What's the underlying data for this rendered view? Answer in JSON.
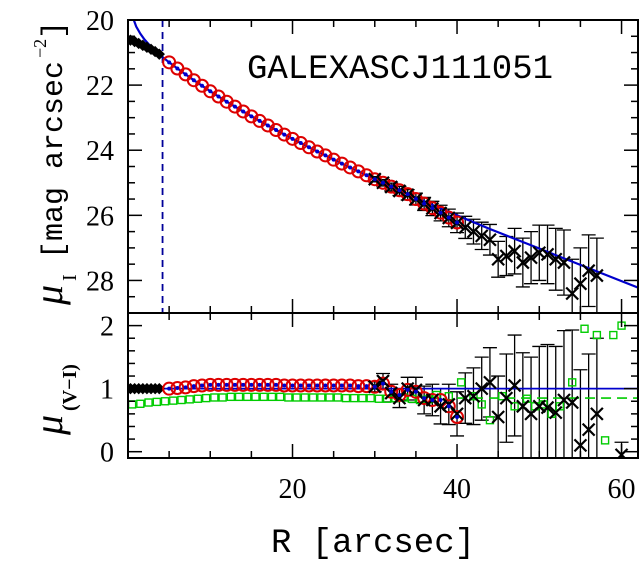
{
  "chart_data": [
    {
      "type": "scatter",
      "panel": "top",
      "title": "GALEXASCJ111051",
      "ylabel_main": "μ",
      "ylabel_sub": "I",
      "ylabel_units": "[mag arcsec",
      "ylabel_exp": "−2",
      "ylabel_close": "]",
      "xlim": [
        0,
        62
      ],
      "ylim": [
        29.0,
        20.0
      ],
      "y_inverted": true,
      "yticks": [
        20,
        22,
        24,
        26,
        28
      ],
      "ytick_labels": [
        "20",
        "22",
        "24",
        "26",
        "28"
      ],
      "vline_x": 4.2,
      "colors": {
        "model": "#0000cc",
        "red": "#dd0000",
        "black": "#000000",
        "green": "#00cc00",
        "vline": "#000099"
      },
      "series": [
        {
          "marker": "diamond",
          "color": "#000000",
          "points": [
            [
              0.3,
              20.62
            ],
            [
              0.8,
              20.66
            ],
            [
              1.3,
              20.72
            ],
            [
              1.8,
              20.78
            ],
            [
              2.3,
              20.84
            ],
            [
              2.8,
              20.9
            ],
            [
              3.3,
              20.97
            ],
            [
              3.8,
              21.05
            ]
          ]
        },
        {
          "marker": "circle",
          "color": "#dd0000",
          "points": [
            [
              5,
              21.3
            ],
            [
              6,
              21.49
            ],
            [
              7,
              21.67
            ],
            [
              8,
              21.85
            ],
            [
              9,
              22.02
            ],
            [
              10,
              22.19
            ],
            [
              11,
              22.35
            ],
            [
              12,
              22.51
            ],
            [
              13,
              22.66
            ],
            [
              14,
              22.81
            ],
            [
              15,
              22.96
            ],
            [
              16,
              23.1
            ],
            [
              17,
              23.24
            ],
            [
              18,
              23.38
            ],
            [
              19,
              23.52
            ],
            [
              20,
              23.65
            ],
            [
              21,
              23.78
            ],
            [
              22,
              23.91
            ],
            [
              23,
              24.04
            ],
            [
              24,
              24.16
            ],
            [
              25,
              24.29
            ],
            [
              26,
              24.41
            ],
            [
              27,
              24.53
            ],
            [
              28,
              24.65
            ],
            [
              29,
              24.77
            ],
            [
              30,
              24.89
            ],
            [
              31,
              25.0
            ],
            [
              32,
              25.12
            ],
            [
              33,
              25.23
            ],
            [
              34,
              25.35
            ],
            [
              35,
              25.5
            ],
            [
              36,
              25.64
            ],
            [
              37,
              25.78
            ],
            [
              38,
              25.92
            ],
            [
              39,
              26.07
            ],
            [
              40,
              26.22
            ]
          ]
        },
        {
          "marker": "cross",
          "color": "#000000",
          "points": [
            [
              30,
              24.89
            ],
            [
              31,
              25.0
            ],
            [
              32,
              25.13
            ],
            [
              33,
              25.25
            ],
            [
              34,
              25.37
            ],
            [
              35,
              25.5
            ],
            [
              36,
              25.65
            ],
            [
              37,
              25.79
            ],
            [
              38,
              25.93
            ],
            [
              39,
              26.08
            ],
            [
              40,
              26.23
            ],
            [
              41,
              26.37
            ],
            [
              42,
              26.5
            ],
            [
              43,
              26.63
            ],
            [
              44,
              26.75
            ],
            [
              45,
              27.35
            ],
            [
              46,
              27.25
            ],
            [
              47,
              27.1
            ],
            [
              48,
              27.45
            ],
            [
              49,
              27.3
            ],
            [
              50,
              27.15
            ],
            [
              51,
              27.2
            ],
            [
              52,
              27.35
            ],
            [
              53,
              27.45
            ],
            [
              54,
              28.4
            ],
            [
              55,
              28.1
            ],
            [
              56,
              27.7
            ],
            [
              57,
              27.85
            ]
          ]
        }
      ],
      "errorbars": {
        "x": [
          30,
          31,
          32,
          33,
          34,
          35,
          36,
          37,
          38,
          39,
          40,
          41,
          42,
          43,
          44,
          45,
          46,
          47,
          48,
          49,
          50,
          51,
          52,
          53,
          54,
          55,
          56,
          57
        ],
        "err": [
          0.08,
          0.1,
          0.12,
          0.14,
          0.16,
          0.18,
          0.2,
          0.22,
          0.24,
          0.27,
          0.3,
          0.34,
          0.38,
          0.42,
          0.47,
          0.55,
          0.6,
          0.7,
          0.75,
          0.8,
          0.85,
          0.9,
          0.95,
          1.0,
          1.05,
          1.1,
          1.1,
          1.15
        ]
      },
      "model": {
        "color": "#0000cc",
        "x": [
          0.7,
          1,
          1.5,
          2,
          3,
          4,
          5,
          6,
          7,
          8,
          10,
          12,
          14,
          16,
          18,
          20,
          22,
          24,
          26,
          28,
          30,
          32,
          34,
          36,
          38,
          40,
          42,
          44,
          46,
          48,
          50,
          52,
          54,
          56,
          58,
          60,
          62
        ],
        "y": [
          20.0,
          20.2,
          20.42,
          20.6,
          20.88,
          21.1,
          21.3,
          21.49,
          21.67,
          21.85,
          22.19,
          22.51,
          22.81,
          23.1,
          23.38,
          23.65,
          23.91,
          24.16,
          24.41,
          24.65,
          24.89,
          25.12,
          25.35,
          25.57,
          25.79,
          26.0,
          26.21,
          26.42,
          26.62,
          26.82,
          27.02,
          27.22,
          27.42,
          27.62,
          27.82,
          28.02,
          28.22
        ]
      }
    },
    {
      "type": "scatter",
      "panel": "bottom",
      "ylabel_main": "μ",
      "ylabel_sub": "(V−I)",
      "xlabel": "R [arcsec]",
      "xlim": [
        0,
        62
      ],
      "ylim": [
        -0.1,
        2.2
      ],
      "yticks": [
        0,
        1,
        2
      ],
      "ytick_labels": [
        "0",
        "1",
        "2"
      ],
      "xticks": [
        20,
        40,
        60
      ],
      "xtick_labels": [
        "20",
        "40",
        "60"
      ],
      "hline_blue": 1.0,
      "hline_green": 0.85,
      "series": [
        {
          "marker": "diamond",
          "color": "#000000",
          "points": [
            [
              0.3,
              1.0
            ],
            [
              0.8,
              1.0
            ],
            [
              1.3,
              1.0
            ],
            [
              1.8,
              1.0
            ],
            [
              2.3,
              1.0
            ],
            [
              2.8,
              1.0
            ],
            [
              3.3,
              1.0
            ],
            [
              3.8,
              1.0
            ]
          ]
        },
        {
          "marker": "square",
          "color": "#00cc00",
          "points": [
            [
              0.5,
              0.75
            ],
            [
              1.5,
              0.76
            ],
            [
              2.5,
              0.78
            ],
            [
              3.5,
              0.79
            ],
            [
              4.5,
              0.8
            ],
            [
              5.5,
              0.81
            ],
            [
              6.5,
              0.82
            ],
            [
              7.5,
              0.83
            ],
            [
              8.5,
              0.84
            ],
            [
              9.5,
              0.85
            ],
            [
              10.5,
              0.86
            ],
            [
              11.5,
              0.86
            ],
            [
              12.5,
              0.87
            ],
            [
              13.5,
              0.87
            ],
            [
              14.5,
              0.87
            ],
            [
              15.5,
              0.87
            ],
            [
              16.5,
              0.87
            ],
            [
              17.5,
              0.87
            ],
            [
              18.5,
              0.87
            ],
            [
              19.5,
              0.86
            ],
            [
              20.5,
              0.86
            ],
            [
              21.5,
              0.86
            ],
            [
              22.5,
              0.86
            ],
            [
              23.5,
              0.86
            ],
            [
              24.5,
              0.86
            ],
            [
              25.5,
              0.86
            ],
            [
              26.5,
              0.85
            ],
            [
              27.5,
              0.85
            ],
            [
              28.5,
              0.85
            ],
            [
              29.5,
              0.85
            ],
            [
              30.5,
              0.84
            ],
            [
              31.5,
              0.84
            ],
            [
              32.5,
              0.85
            ],
            [
              33.5,
              0.86
            ],
            [
              34.5,
              0.84
            ],
            [
              35.5,
              0.82
            ],
            [
              36.5,
              0.83
            ],
            [
              37.5,
              0.9
            ],
            [
              39,
              0.88
            ],
            [
              40.5,
              1.1
            ],
            [
              42,
              0.88
            ],
            [
              43,
              0.75
            ],
            [
              44,
              0.5
            ],
            [
              45.5,
              0.88
            ],
            [
              47,
              0.72
            ],
            [
              48.5,
              0.84
            ],
            [
              49.5,
              0.72
            ],
            [
              50.5,
              0.75
            ],
            [
              51.5,
              0.6
            ],
            [
              52.5,
              0.72
            ],
            [
              54,
              1.1
            ],
            [
              55.5,
              1.95
            ],
            [
              57,
              1.85
            ],
            [
              58,
              0.18
            ],
            [
              59,
              1.85
            ],
            [
              60,
              2.0
            ]
          ]
        },
        {
          "marker": "circle",
          "color": "#dd0000",
          "points": [
            [
              5,
              1.0
            ],
            [
              6,
              1.01
            ],
            [
              7,
              1.02
            ],
            [
              8,
              1.04
            ],
            [
              9,
              1.05
            ],
            [
              10,
              1.06
            ],
            [
              11,
              1.06
            ],
            [
              12,
              1.06
            ],
            [
              13,
              1.06
            ],
            [
              14,
              1.06
            ],
            [
              15,
              1.06
            ],
            [
              16,
              1.06
            ],
            [
              17,
              1.06
            ],
            [
              18,
              1.06
            ],
            [
              19,
              1.05
            ],
            [
              20,
              1.05
            ],
            [
              21,
              1.05
            ],
            [
              22,
              1.05
            ],
            [
              23,
              1.05
            ],
            [
              24,
              1.05
            ],
            [
              25,
              1.05
            ],
            [
              26,
              1.05
            ],
            [
              27,
              1.05
            ],
            [
              28,
              1.04
            ],
            [
              29,
              1.04
            ],
            [
              30,
              1.03
            ],
            [
              31,
              1.08
            ],
            [
              32,
              0.95
            ],
            [
              33,
              0.9
            ],
            [
              34,
              0.98
            ],
            [
              35,
              0.95
            ],
            [
              36,
              0.85
            ],
            [
              37,
              0.82
            ],
            [
              38,
              0.82
            ],
            [
              39,
              0.72
            ],
            [
              40,
              0.55
            ]
          ]
        },
        {
          "marker": "cross",
          "color": "#000000",
          "points": [
            [
              30,
              1.03
            ],
            [
              31,
              1.12
            ],
            [
              32,
              0.93
            ],
            [
              33,
              0.85
            ],
            [
              34,
              1.0
            ],
            [
              35,
              0.98
            ],
            [
              36,
              0.82
            ],
            [
              37,
              0.82
            ],
            [
              38,
              0.72
            ],
            [
              39,
              0.75
            ],
            [
              40,
              0.6
            ],
            [
              41,
              0.85
            ],
            [
              42,
              0.88
            ],
            [
              43,
              1.0
            ],
            [
              44,
              1.1
            ],
            [
              45,
              0.55
            ],
            [
              46,
              0.85
            ],
            [
              47,
              1.05
            ],
            [
              48,
              0.72
            ],
            [
              49,
              0.6
            ],
            [
              50,
              0.72
            ],
            [
              51,
              0.7
            ],
            [
              52,
              0.62
            ],
            [
              53,
              0.82
            ],
            [
              54,
              0.78
            ],
            [
              55,
              0.1
            ],
            [
              56,
              0.35
            ],
            [
              57,
              0.6
            ],
            [
              60,
              -0.05
            ]
          ]
        }
      ],
      "errorbars": {
        "x": [
          30,
          31,
          32,
          33,
          34,
          35,
          36,
          37,
          38,
          39,
          40,
          41,
          42,
          43,
          44,
          45,
          46,
          47,
          48,
          49,
          50,
          51,
          52,
          53,
          54,
          55,
          56,
          57,
          60
        ],
        "err": [
          0.08,
          0.12,
          0.14,
          0.15,
          0.18,
          0.2,
          0.22,
          0.25,
          0.28,
          0.32,
          0.35,
          0.4,
          0.45,
          0.5,
          0.55,
          0.65,
          0.7,
          0.8,
          0.85,
          0.9,
          0.95,
          1.0,
          1.05,
          1.1,
          1.15,
          1.2,
          1.2,
          1.2,
          0.2
        ]
      }
    }
  ]
}
